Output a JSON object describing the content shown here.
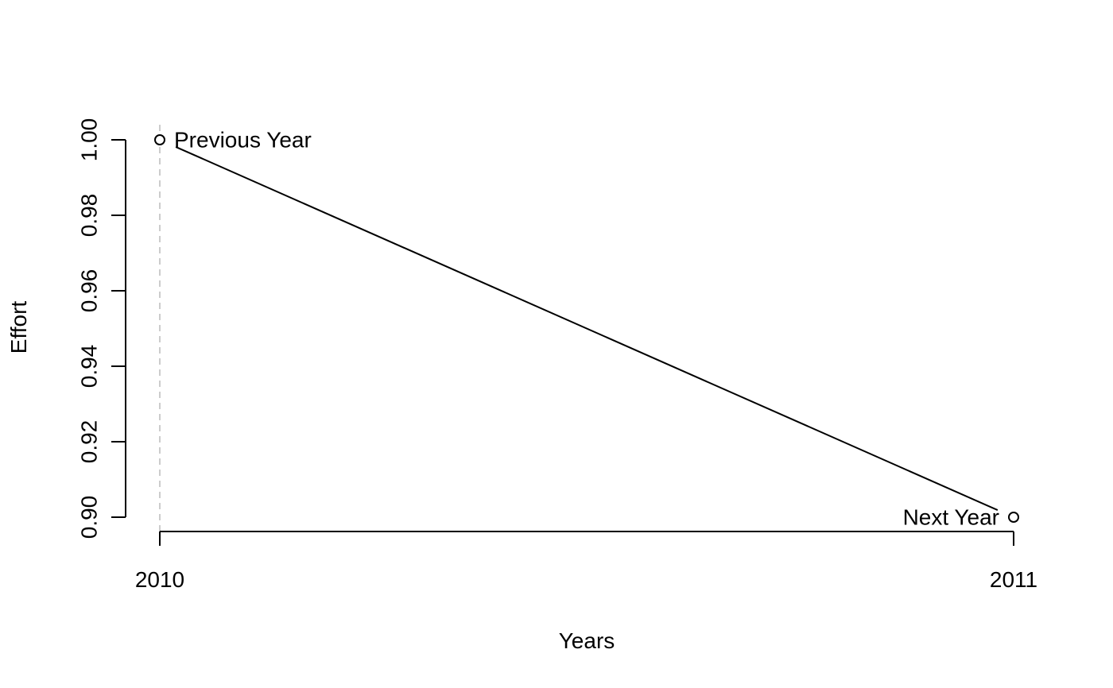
{
  "chart_data": {
    "type": "line",
    "title": "",
    "xlabel": "Years",
    "ylabel": "Effort",
    "x": [
      2010,
      2011
    ],
    "series": [
      {
        "values": [
          1.0,
          0.9
        ]
      }
    ],
    "point_labels": [
      "Previous Year",
      "Next Year"
    ],
    "x_ticks": [
      "2010",
      "2011"
    ],
    "y_ticks": [
      "0.90",
      "0.92",
      "0.94",
      "0.96",
      "0.98",
      "1.00"
    ],
    "xlim": [
      2010,
      2011
    ],
    "ylim": [
      0.9,
      1.0
    ],
    "grid": false,
    "reference_line": {
      "x": 2010,
      "style": "dashed",
      "color": "#cccccc"
    },
    "colors": {
      "line": "#000000",
      "axis": "#000000"
    }
  }
}
